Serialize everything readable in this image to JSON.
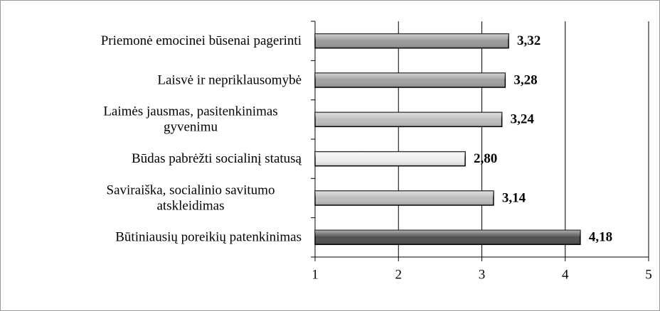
{
  "chart_data": {
    "type": "barh",
    "categories": [
      [
        "Priemonė emocinei būsenai pagerinti"
      ],
      [
        "Laisvė ir nepriklausomybė"
      ],
      [
        "Laimės jausmas, pasitenkinimas",
        "gyvenimu"
      ],
      [
        "Būdas pabrėžti socialinį statusą"
      ],
      [
        "Saviraiška, socialinio savitumo",
        "atskleidimas"
      ],
      [
        "Būtiniausių poreikių patenkinimas"
      ]
    ],
    "values": [
      3.32,
      3.28,
      3.24,
      2.8,
      3.14,
      4.18
    ],
    "value_labels": [
      "3,32",
      "3,28",
      "3,24",
      "2,80",
      "3,14",
      "4,18"
    ],
    "colors": [
      "#9a9a9a",
      "#a0a0a0",
      "#bdbdbd",
      "#eeeeee",
      "#bdbdbd",
      "#505050"
    ],
    "xlim": [
      1,
      5
    ],
    "xticks": [
      1,
      2,
      3,
      4,
      5
    ],
    "grid": true
  }
}
